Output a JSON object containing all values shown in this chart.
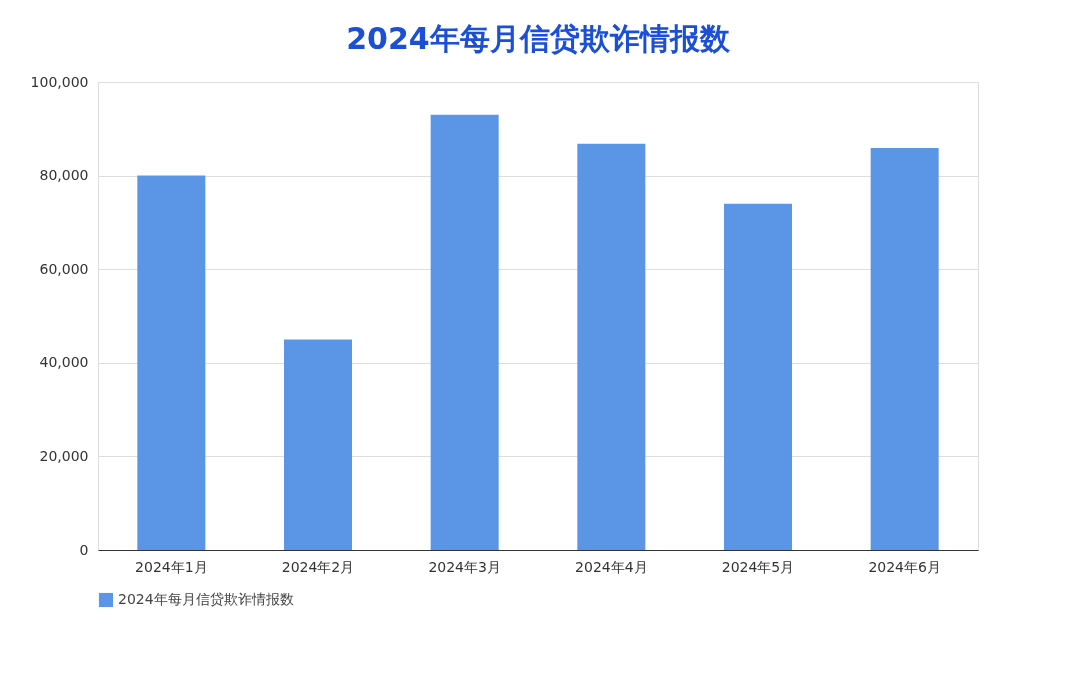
{
  "chart_data": {
    "type": "bar",
    "title": "2024年每月信贷欺诈情报数",
    "categories": [
      "2024年1月",
      "2024年2月",
      "2024年3月",
      "2024年4月",
      "2024年5月",
      "2024年6月"
    ],
    "series": [
      {
        "name": "2024年每月信贷欺诈情报数",
        "color": "#5b96e6",
        "values": [
          80000,
          45000,
          93000,
          86800,
          74000,
          85900
        ]
      }
    ],
    "ylim": [
      0,
      100000
    ],
    "yticks": [
      {
        "value": 0,
        "label": "0"
      },
      {
        "value": 20000,
        "label": "20,000"
      },
      {
        "value": 40000,
        "label": "40,000"
      },
      {
        "value": 60000,
        "label": "60,000"
      },
      {
        "value": 80000,
        "label": "80,000"
      },
      {
        "value": 100000,
        "label": "100,000"
      }
    ],
    "grid": "y",
    "legend": "bottom"
  }
}
